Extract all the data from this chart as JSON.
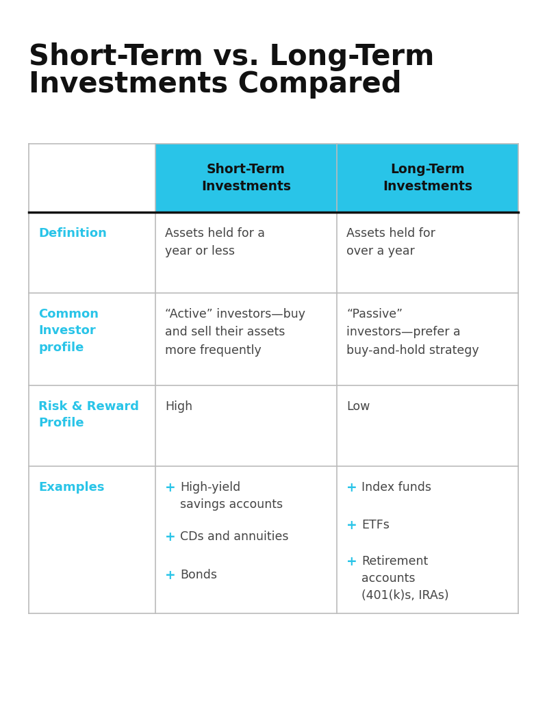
{
  "title_line1": "Short-Term vs. Long-Term",
  "title_line2": "Investments Compared",
  "title_fontsize": 30,
  "title_color": "#111111",
  "background_color": "#ffffff",
  "header_bg_color": "#29c4e8",
  "header_text_color": "#111111",
  "row_label_color": "#29c4e8",
  "body_text_color": "#444444",
  "plus_color": "#29c4e8",
  "grid_color": "#bbbbbb",
  "dark_line_color": "#111111",
  "col_headers": [
    "Short-Term\nInvestments",
    "Long-Term\nInvestments"
  ],
  "row_labels": [
    "Definition",
    "Common\nInvestor\nprofile",
    "Risk & Reward\nProfile",
    "Examples"
  ],
  "short_term_data": [
    "Assets held for a\nyear or less",
    "“Active” investors—buy\nand sell their assets\nmore frequently",
    "High"
  ],
  "long_term_data": [
    "Assets held for\nover a year",
    "“Passive”\ninvestors—prefer a\nbuy-and-hold strategy",
    "Low"
  ],
  "short_term_examples": [
    "High-yield\nsavings accounts",
    "CDs and annuities",
    "Bonds"
  ],
  "long_term_examples": [
    "Index funds",
    "ETFs",
    "Retirement\naccounts\n(401(k)s, IRAs)"
  ]
}
